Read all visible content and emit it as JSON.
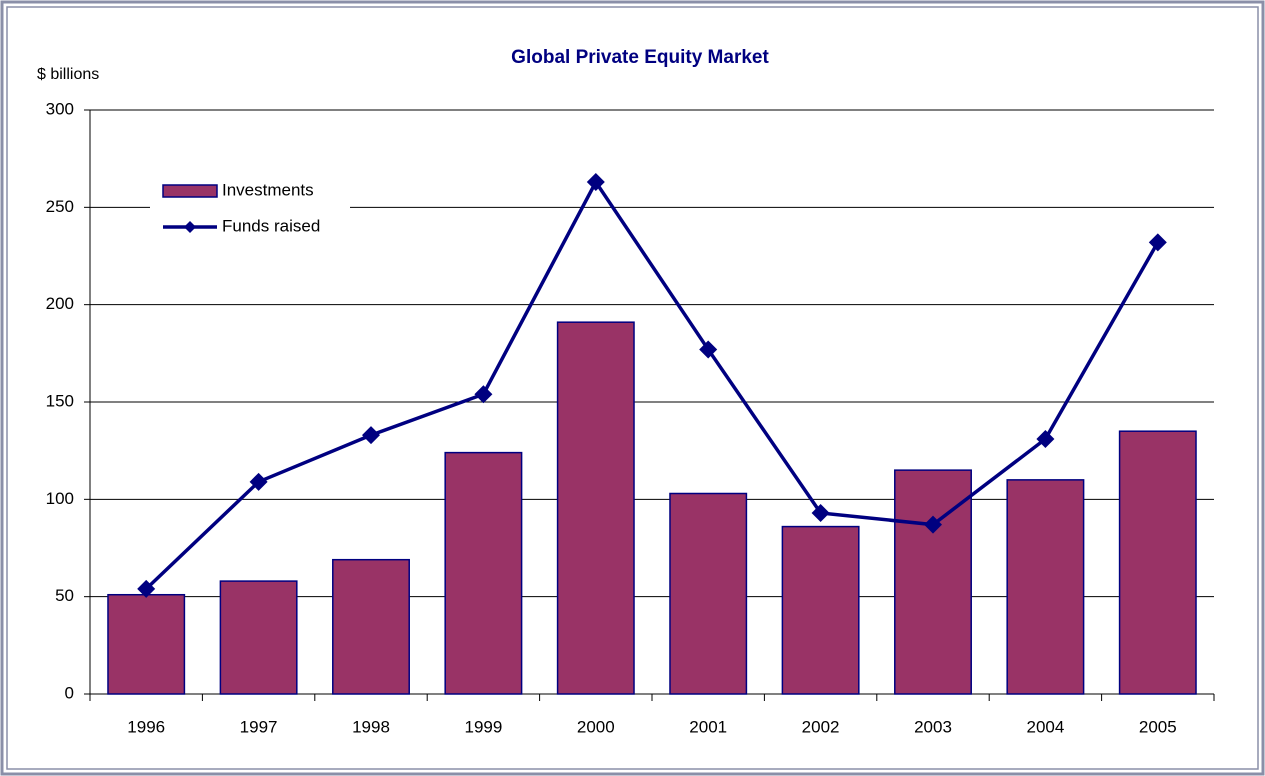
{
  "chart_data": {
    "type": "bar",
    "title": "Global Private Equity Market",
    "y_label": "$ billions",
    "categories": [
      "1996",
      "1997",
      "1998",
      "1999",
      "2000",
      "2001",
      "2002",
      "2003",
      "2004",
      "2005"
    ],
    "series": [
      {
        "name": "Investments",
        "type": "bar",
        "color": "#993366",
        "values": [
          51,
          58,
          69,
          124,
          191,
          103,
          86,
          115,
          110,
          135
        ]
      },
      {
        "name": "Funds raised",
        "type": "line",
        "color": "#000080",
        "values": [
          54,
          109,
          133,
          154,
          263,
          177,
          93,
          87,
          131,
          232
        ]
      }
    ],
    "ylim": [
      0,
      300
    ],
    "yticks": [
      0,
      50,
      100,
      150,
      200,
      250,
      300
    ],
    "grid": true,
    "legend": "upper left"
  }
}
